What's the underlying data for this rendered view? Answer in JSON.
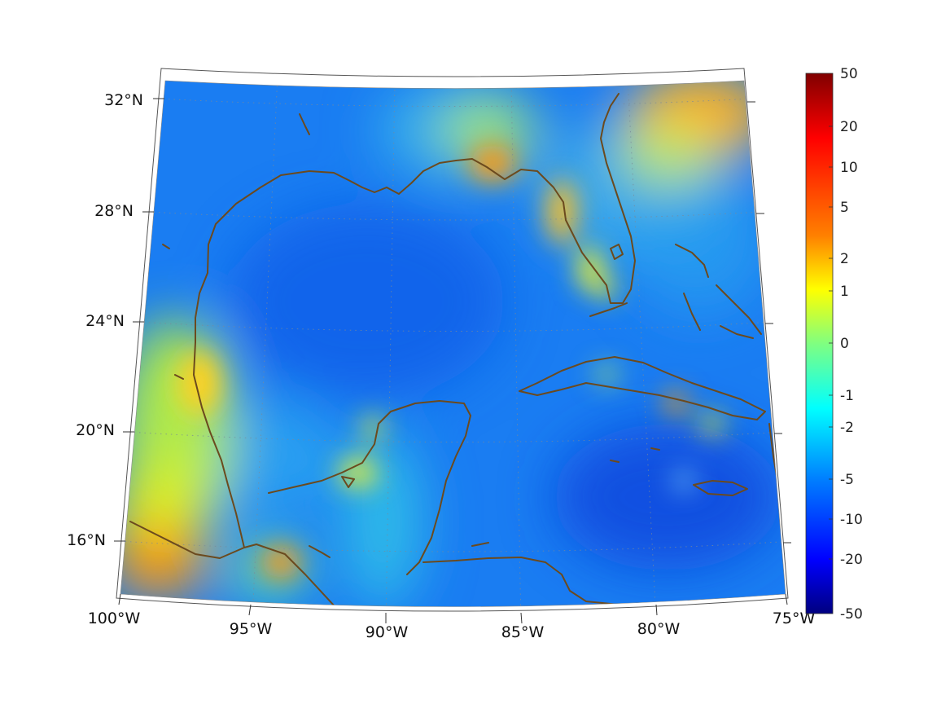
{
  "map": {
    "lon_labels": [
      "100°W",
      "95°W",
      "90°W",
      "85°W",
      "80°W",
      "75°W"
    ],
    "lat_labels": [
      "32°N",
      "28°N",
      "24°N",
      "20°N",
      "16°N"
    ],
    "lon_values": [
      -100,
      -95,
      -90,
      -85,
      -80,
      -75
    ],
    "lat_values": [
      32,
      28,
      24,
      20,
      16
    ],
    "extent": {
      "lon_min": -100,
      "lon_max": -75,
      "lat_min": 14.5,
      "lat_max": 33
    },
    "field_palette": "jet",
    "coastline_color": "#6b4a1e",
    "graticule": "dotted"
  },
  "colorbar": {
    "tick_labels": [
      "50",
      "20",
      "10",
      "5",
      "2",
      "1",
      "0",
      "-1",
      "-2",
      "-5",
      "-10",
      "-20",
      "-50"
    ],
    "colors": [
      "#800000",
      "#ff0000",
      "#ff8000",
      "#ffff00",
      "#80ff80",
      "#00ffff",
      "#0080ff",
      "#0000ff",
      "#000080"
    ]
  }
}
